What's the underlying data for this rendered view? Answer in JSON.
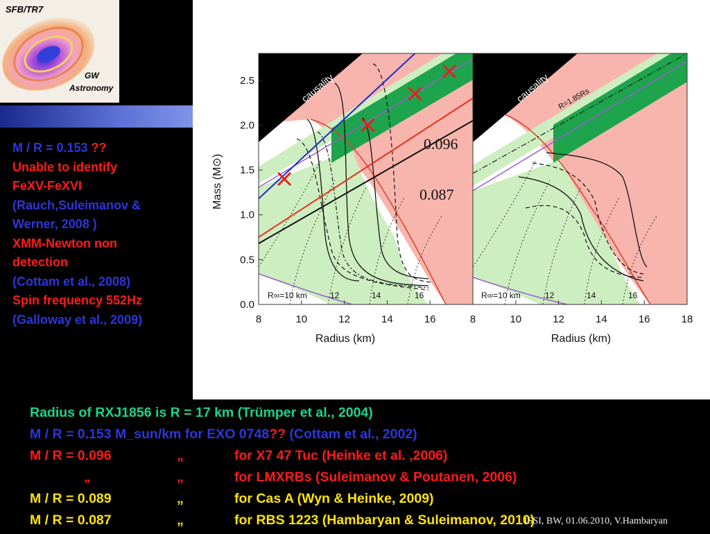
{
  "logo": {
    "title": "SFB/TR7",
    "caption_line1": "GW",
    "caption_line2": "Astronomy"
  },
  "notes": [
    {
      "text": "M / R = 0.153 ",
      "extra": "??",
      "color": "blue"
    },
    {
      "text": "Unable to identify",
      "color": "red"
    },
    {
      "text": "FeXV-FeXVI",
      "color": "red"
    },
    {
      "text": "(Rauch,Suleimanov &",
      "color": "blue"
    },
    {
      "text": "Werner, 2008 )",
      "color": "blue"
    },
    {
      "text": "XMM-Newton non",
      "color": "red"
    },
    {
      "text": "detection",
      "color": "red"
    },
    {
      "text": "(Cottam et al., 2008)",
      "color": "blue"
    },
    {
      "text": "Spin  frequency  552Hz",
      "color": "red"
    },
    {
      "text": "(Galloway et al., 2009)",
      "color": "blue"
    }
  ],
  "chart_data": [
    {
      "type": "line",
      "xlabel": "Radius (km)",
      "ylabel": "Mass (M⊙)",
      "xlim": [
        8,
        18
      ],
      "ylim": [
        0,
        2.8
      ],
      "x_ticks": [
        "8",
        "10",
        "12",
        "14",
        "16"
      ],
      "y_ticks": [
        "0.0",
        "0.5",
        "1.0",
        "1.5",
        "2.0",
        "2.5"
      ],
      "region_label": "causality",
      "rinf_labels": [
        "R∞=10 km",
        "12",
        "14",
        "16"
      ],
      "lines": [
        {
          "label": "0.096",
          "x": [
            8,
            18
          ],
          "y": [
            0.75,
            2.3
          ],
          "color": "#e8301c"
        },
        {
          "label": "0.087",
          "x": [
            8,
            18
          ],
          "y": [
            0.68,
            2.05
          ],
          "color": "#111111"
        },
        {
          "x": [
            8,
            18
          ],
          "y": [
            1.18,
            3.4
          ],
          "color": "#1a2ccc"
        }
      ],
      "markers": [
        {
          "x": 9.2,
          "y": 1.4
        },
        {
          "x": 13.1,
          "y": 2.0
        },
        {
          "x": 15.3,
          "y": 2.35
        },
        {
          "x": 16.9,
          "y": 2.6
        }
      ]
    },
    {
      "type": "line",
      "xlabel": "Radius (km)",
      "xlim": [
        8,
        18
      ],
      "ylim": [
        0,
        2.8
      ],
      "x_ticks": [
        "8",
        "10",
        "12",
        "14",
        "16",
        "18"
      ],
      "region_label": "causality",
      "line_label": "R=1.85Rs",
      "rinf_labels": [
        "R∞=10 km",
        "12",
        "14",
        "16"
      ]
    }
  ],
  "refs": [
    {
      "a": "Radius of RXJ1856 is R  =  17 km (Trümper et al., 2004)",
      "b": "",
      "c": "",
      "color": "teal"
    },
    {
      "a": "M / R = 0.153 M_sun/km  for EXO 0748",
      "q": "??",
      "a2": " (Cottam et al., 2002)",
      "b": "",
      "c": "",
      "color": "blue"
    },
    {
      "a": "M / R = 0.096",
      "b": "„",
      "c": "for  X7 47 Tuc (Heinke et al. ,2006)",
      "color": "red"
    },
    {
      "a": "         „",
      "b": "„",
      "c": "for LMXRBs (Suleimanov & Poutanen, 2006)",
      "color": "red"
    },
    {
      "a": "M / R = 0.089",
      "b": "„",
      "c": "for Cas A (Wyn & Heinke, 2009)",
      "color": "yellow"
    },
    {
      "a": "M / R = 0.087",
      "b": "„",
      "c": "for RBS 1223 (Hambaryan & Suleimanov, 2010)",
      "color": "yellow"
    }
  ],
  "credit": "ISSI, BW, 01.06.2010, V.Hambaryan"
}
